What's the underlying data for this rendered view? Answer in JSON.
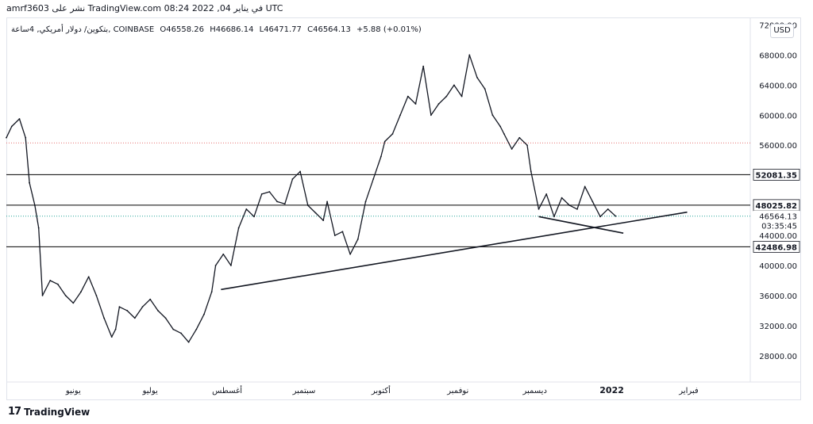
{
  "header": {
    "publish_line": "amrf3603 نشر على TradingView.com في يناير 04, 2022 08:24 UTC"
  },
  "legend": {
    "symbol": "بتكوين/ دولار أمريكي, 4ساعة, COINBASE",
    "open": "O46558.26",
    "high": "H46686.14",
    "low": "L46471.77",
    "close": "C46564.13",
    "change": "+5.88 (+0.01%)"
  },
  "currency_button": "USD",
  "footer": {
    "brand": "TradingView",
    "logo_text": "17"
  },
  "chart_data": {
    "type": "line",
    "title": "",
    "xlabel": "",
    "ylabel": "",
    "ylim": [
      24500,
      73000
    ],
    "y_ticks": [
      "28000.00",
      "32000.00",
      "36000.00",
      "40000.00",
      "44000.00",
      "48000.00",
      "52000.00",
      "56000.00",
      "60000.00",
      "64000.00",
      "68000.00",
      "72000.00"
    ],
    "y_tick_values": [
      28000,
      32000,
      36000,
      40000,
      44000,
      48000,
      52000,
      56000,
      60000,
      64000,
      68000,
      72000
    ],
    "x_labels": [
      "يونيو",
      "يوليو",
      "أغسطس",
      "سبتمبر",
      "أكتوبر",
      "نوفمبر",
      "ديسمبر",
      "2022",
      "فبراير"
    ],
    "x_label_positions": [
      1.0,
      2.0,
      3.0,
      4.0,
      5.0,
      6.0,
      7.0,
      8.0,
      9.0
    ],
    "x_range": [
      0.13,
      9.8
    ],
    "price_series": {
      "name": "",
      "x": [
        0.13,
        0.2,
        0.3,
        0.38,
        0.43,
        0.5,
        0.55,
        0.6,
        0.7,
        0.8,
        0.9,
        1.0,
        1.1,
        1.2,
        1.3,
        1.4,
        1.5,
        1.55,
        1.6,
        1.7,
        1.8,
        1.9,
        2.0,
        2.1,
        2.2,
        2.3,
        2.4,
        2.5,
        2.6,
        2.7,
        2.8,
        2.85,
        2.95,
        3.05,
        3.15,
        3.25,
        3.35,
        3.45,
        3.55,
        3.65,
        3.75,
        3.85,
        3.95,
        4.05,
        4.15,
        4.25,
        4.3,
        4.4,
        4.5,
        4.6,
        4.7,
        4.8,
        4.9,
        5.0,
        5.05,
        5.15,
        5.25,
        5.35,
        5.45,
        5.55,
        5.65,
        5.75,
        5.85,
        5.95,
        6.05,
        6.15,
        6.25,
        6.35,
        6.45,
        6.55,
        6.6,
        6.7,
        6.8,
        6.9,
        6.95,
        7.05,
        7.15,
        7.25,
        7.35,
        7.45,
        7.55,
        7.65,
        7.75,
        7.85,
        7.95,
        8.05
      ],
      "y": [
        57000,
        58500,
        59500,
        57000,
        51000,
        48000,
        45000,
        36000,
        38000,
        37500,
        36000,
        35000,
        36500,
        38500,
        36000,
        33000,
        30500,
        31500,
        34500,
        34000,
        33000,
        34500,
        35500,
        34000,
        33000,
        31500,
        31000,
        29800,
        31500,
        33500,
        36500,
        40000,
        41500,
        40000,
        45000,
        47500,
        46500,
        49500,
        49800,
        48500,
        48200,
        51500,
        52500,
        48000,
        47000,
        46000,
        48500,
        44000,
        44500,
        41500,
        43500,
        48500,
        51500,
        54500,
        56500,
        57500,
        60000,
        62500,
        61500,
        66500,
        60000,
        61500,
        62500,
        64000,
        62500,
        68000,
        65000,
        63500,
        60000,
        58500,
        57500,
        55500,
        57000,
        56000,
        52500,
        47500,
        49500,
        46500,
        49000,
        48000,
        47500,
        50500,
        48500,
        46500,
        47500,
        46564
      ]
    },
    "horizontal_levels": [
      {
        "value": 52081.35,
        "label": "52081.35",
        "color": "#000000"
      },
      {
        "value": 48025.82,
        "label": "48025.82",
        "color": "#000000"
      },
      {
        "value": 42486.98,
        "label": "42486.98",
        "color": "#000000"
      },
      {
        "value": 56300,
        "label": "",
        "color": "#e57373",
        "style": "dotted"
      },
      {
        "value": 46564.13,
        "label": "46564.13",
        "color": "#26a69a",
        "style": "dotted"
      }
    ],
    "countdown_label": "03:35:45",
    "trend_lines": [
      {
        "x1": 2.92,
        "y1": 36800,
        "x2": 8.98,
        "y2": 47100
      },
      {
        "x1": 7.05,
        "y1": 46500,
        "x2": 8.15,
        "y2": 44300
      }
    ],
    "grid": false,
    "legend_position": "top-left"
  }
}
